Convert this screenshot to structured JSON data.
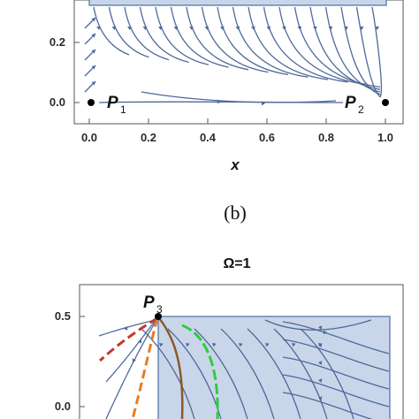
{
  "chart_data": [
    {
      "type": "scatter",
      "title": "",
      "xlabel": "x",
      "ylabel": "",
      "xlim": [
        0,
        1
      ],
      "xticks": [
        "0.0",
        "0.2",
        "0.4",
        "0.6",
        "0.8",
        "1.0"
      ],
      "yticks": [
        "0.0",
        "0.2"
      ],
      "critical_points": [
        {
          "label": "P",
          "sub": "1",
          "x": 0.0,
          "y": 0.0
        },
        {
          "label": "P",
          "sub": "2",
          "x": 1.0,
          "y": 0.0
        }
      ],
      "shaded_region": "top band (light blue)",
      "streamlines": true
    },
    {
      "type": "scatter",
      "title": "Ω=1",
      "xlabel": "",
      "ylabel": "",
      "yticks": [
        "0.5",
        "0.0"
      ],
      "critical_points": [
        {
          "label": "P",
          "sub": "3",
          "x": 0.0,
          "y": 0.5
        }
      ],
      "shaded_region": "right block (light blue)",
      "streamlines": true,
      "trajectories": [
        {
          "color": "#c0392b",
          "style": "dashed"
        },
        {
          "color": "#e67e22",
          "style": "dashed"
        },
        {
          "color": "#8b5a2b",
          "style": "solid"
        },
        {
          "color": "#2ecc40",
          "style": "dashed"
        }
      ]
    }
  ],
  "panel_label": "(b)",
  "colors": {
    "region_fill": "#c9d6ea",
    "region_stroke": "#4a6fa5",
    "stream": "#4e6a9a"
  }
}
